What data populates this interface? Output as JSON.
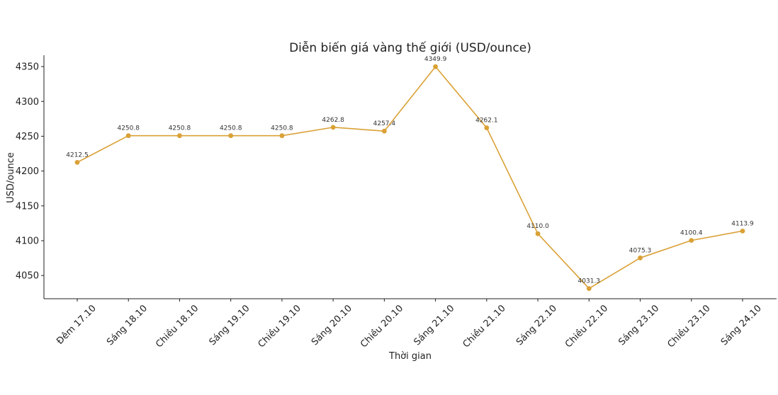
{
  "chart_data": {
    "type": "line",
    "title": "Diễn biến giá vàng thế giới (USD/ounce)",
    "xlabel": "Thời gian",
    "ylabel": "USD/ounce",
    "categories": [
      "Đêm 17.10",
      "Sáng 18.10",
      "Chiều 18.10",
      "Sáng 19.10",
      "Chiều 19.10",
      "Sáng 20.10",
      "Chiều 20.10",
      "Sáng 21.10",
      "Chiều 21.10",
      "Sáng 22.10",
      "Chiều 22.10",
      "Sáng 23.10",
      "Chiều 23.10",
      "Sáng 24.10"
    ],
    "series": [
      {
        "values": [
          4212.5,
          4250.8,
          4250.8,
          4250.8,
          4250.8,
          4262.8,
          4257.4,
          4349.9,
          4262.1,
          4110.0,
          4031.3,
          4075.3,
          4100.4,
          4113.9
        ],
        "color": "#DAA136"
      }
    ],
    "value_labels": [
      "4212.5",
      "4250.8",
      "4250.8",
      "4250.8",
      "4250.8",
      "4262.8",
      "4257.4",
      "4349.9",
      "4262.1",
      "4110.0",
      "4031.3",
      "4075.3",
      "4100.4",
      "4113.9"
    ],
    "yticks": [
      4050,
      4100,
      4150,
      4200,
      4250,
      4300,
      4350
    ],
    "ylim": [
      4016.67,
      4366.33
    ],
    "grid": false,
    "legend": "none"
  }
}
